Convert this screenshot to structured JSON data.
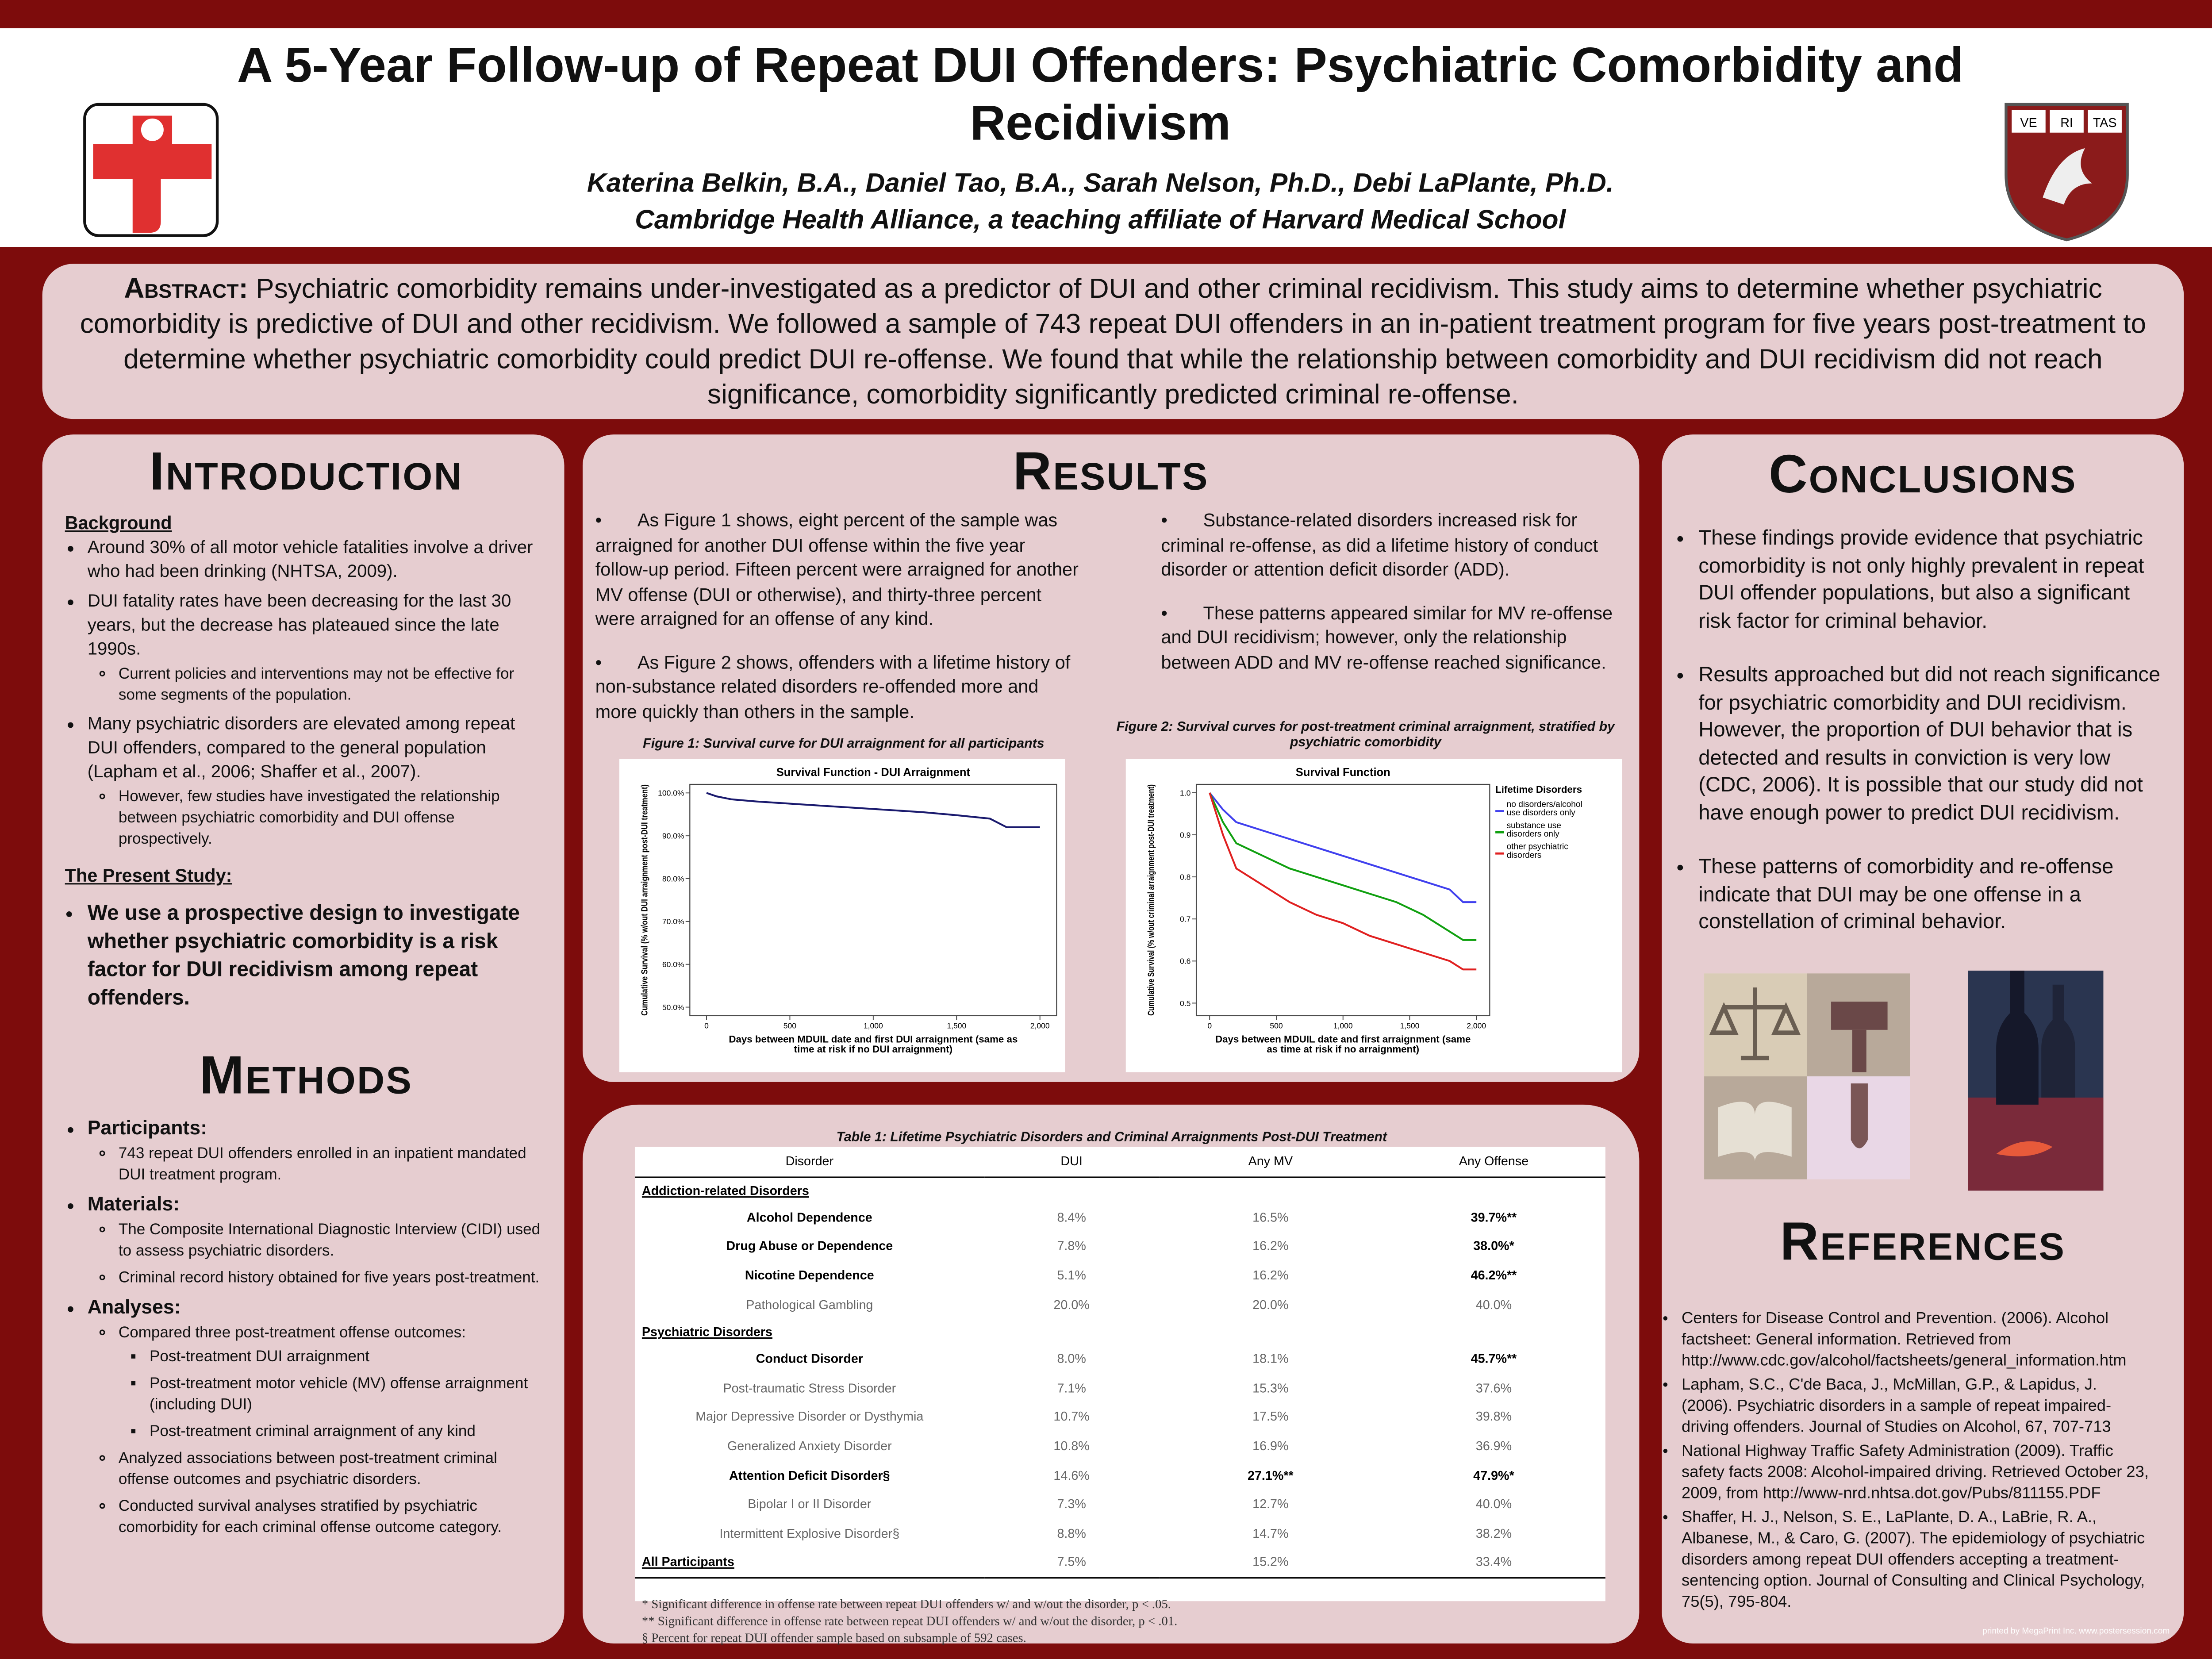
{
  "header": {
    "title": "A 5-Year Follow-up of Repeat DUI Offenders: Psychiatric Comorbidity and Recidivism",
    "authors": "Katerina Belkin, B.A., Daniel Tao, B.A., Sarah Nelson, Ph.D., Debi LaPlante, Ph.D.",
    "affiliation": "Cambridge Health Alliance, a teaching affiliate of Harvard Medical School",
    "shield_text": [
      "VE",
      "RI",
      "TAS"
    ]
  },
  "abstract": {
    "label": "Abstract:",
    "text": "Psychiatric comorbidity remains under-investigated as a predictor of DUI and other criminal recidivism. This study aims to determine whether psychiatric comorbidity is predictive of DUI and other recidivism. We followed a sample of 743 repeat DUI offenders in an in-patient treatment program for five years post-treatment to determine whether psychiatric comorbidity could predict DUI re-offense. We found that while the relationship between comorbidity and DUI recidivism did not reach significance, comorbidity significantly predicted criminal re-offense."
  },
  "introduction": {
    "heading": "Introduction",
    "background_heading": "Background",
    "bullets": [
      {
        "text": "Around 30% of all motor vehicle fatalities involve a driver who had been drinking (NHTSA, 2009).",
        "children": []
      },
      {
        "text": "DUI fatality rates have been decreasing for the last 30 years, but the decrease has plateaued since the late 1990s.",
        "children": [
          {
            "text": "Current policies and interventions may not be effective for some segments of the population.",
            "children": []
          }
        ]
      },
      {
        "text": "Many psychiatric disorders are elevated among repeat DUI offenders, compared to the general population (Lapham et al., 2006; Shaffer et al., 2007).",
        "children": [
          {
            "text": "However, few studies have investigated the relationship between psychiatric comorbidity and DUI offense prospectively.",
            "children": []
          }
        ]
      }
    ],
    "present_study_heading": "The Present Study:",
    "present_study_text": "We use a prospective design to investigate whether psychiatric comorbidity is a risk factor for DUI recidivism among repeat offenders."
  },
  "methods": {
    "heading": "Methods",
    "items": [
      {
        "text": "Participants:",
        "children": [
          {
            "text": "743 repeat DUI offenders enrolled in an inpatient mandated DUI treatment program.",
            "children": []
          }
        ]
      },
      {
        "text": "Materials:",
        "children": [
          {
            "text": "The Composite International Diagnostic Interview (CIDI) used to assess psychiatric disorders.",
            "children": []
          },
          {
            "text": "Criminal record history obtained for five years post-treatment.",
            "children": []
          }
        ]
      },
      {
        "text": "Analyses:",
        "children": [
          {
            "text": "Compared three post-treatment offense outcomes:",
            "children": [
              {
                "text": "Post-treatment DUI arraignment",
                "children": []
              },
              {
                "text": "Post-treatment motor vehicle (MV) offense arraignment (including DUI)",
                "children": []
              },
              {
                "text": "Post-treatment criminal arraignment of any kind",
                "children": []
              }
            ]
          },
          {
            "text": "Analyzed associations between post-treatment criminal offense outcomes and psychiatric disorders.",
            "children": []
          },
          {
            "text": "Conducted survival analyses stratified by psychiatric comorbidity for each criminal offense outcome category.",
            "children": []
          }
        ]
      }
    ]
  },
  "results": {
    "heading": "Results",
    "column_1": [
      "As Figure 1 shows, eight percent of the sample was arraigned for another DUI offense within the five year follow-up period. Fifteen percent were arraigned for another MV offense (DUI or otherwise), and thirty-three percent were arraigned for an offense of any kind.",
      "As Figure 2 shows, offenders with a lifetime history of non-substance related disorders re-offended more and more quickly than others in the sample."
    ],
    "column_2": [
      "Substance-related disorders increased risk for criminal re-offense, as did a lifetime history of conduct disorder or attention deficit disorder (ADD).",
      "These patterns appeared similar for MV re-offense and DUI recidivism; however, only the relationship between ADD and MV re-offense reached significance."
    ]
  },
  "chart_data": [
    {
      "type": "line",
      "caption": "Figure 1: Survival curve for DUI arraignment for all participants",
      "title": "Survival Function - DUI Arraignment",
      "y_label": "Cumulative Survival (% w/out DUI arraignment post-DUI treatment)",
      "x_label": "Days between MDUIL date and first DUI arraignment (same as time at risk if no DUI arraignment)",
      "xlim": [
        -100,
        2100
      ],
      "ylim": [
        48,
        102
      ],
      "xticks": [
        0,
        500,
        {
          "value": 1000,
          "label": "1,000"
        },
        {
          "value": 1500,
          "label": "1,500"
        },
        {
          "value": 2000,
          "label": "2,000"
        }
      ],
      "yticks": [
        {
          "value": 50,
          "label": "50.0%"
        },
        {
          "value": 60,
          "label": "60.0%"
        },
        {
          "value": 70,
          "label": "70.0%"
        },
        {
          "value": 80,
          "label": "80.0%"
        },
        {
          "value": 90,
          "label": "90.0%"
        },
        {
          "value": 100,
          "label": "100.0%"
        }
      ],
      "series": [
        {
          "color": "#1a1a6e",
          "x": [
            0,
            60,
            150,
            300,
            500,
            700,
            900,
            1100,
            1300,
            1500,
            1700,
            1800,
            2000
          ],
          "values": [
            100,
            99.2,
            98.5,
            98,
            97.5,
            97,
            96.5,
            96,
            95.5,
            94.8,
            94,
            92,
            92
          ]
        }
      ]
    },
    {
      "type": "line",
      "caption": "Figure 2: Survival curves for post-treatment criminal arraignment, stratified by psychiatric comorbidity",
      "title": "Survival Function",
      "legend_title": "Lifetime Disorders",
      "y_label": "Cumulative Survival (% w/out criminal arraignment post-DUI treatment)",
      "x_label": "Days between MDUIL date and first arraignment (same as time at risk if no arraignment)",
      "xlim": [
        -100,
        2100
      ],
      "ylim": [
        0.47,
        1.02
      ],
      "xticks": [
        0,
        500,
        {
          "value": 1000,
          "label": "1,000"
        },
        {
          "value": 1500,
          "label": "1,500"
        },
        {
          "value": 2000,
          "label": "2,000"
        }
      ],
      "yticks": [
        0.5,
        0.6,
        0.7,
        0.8,
        0.9,
        {
          "value": 1,
          "label": "1.0"
        }
      ],
      "series": [
        {
          "name": "no disorders/alcohol use disorders only",
          "color": "#4040ee",
          "x": [
            0,
            100,
            200,
            400,
            600,
            800,
            1000,
            1200,
            1400,
            1600,
            1800,
            1900,
            2000
          ],
          "values": [
            1.0,
            0.96,
            0.93,
            0.91,
            0.89,
            0.87,
            0.85,
            0.83,
            0.81,
            0.79,
            0.77,
            0.74,
            0.74
          ]
        },
        {
          "name": "substance use disorders only",
          "color": "#10a010",
          "x": [
            0,
            100,
            200,
            400,
            600,
            800,
            1000,
            1200,
            1400,
            1600,
            1800,
            1900,
            2000
          ],
          "values": [
            1.0,
            0.93,
            0.88,
            0.85,
            0.82,
            0.8,
            0.78,
            0.76,
            0.74,
            0.71,
            0.67,
            0.65,
            0.65
          ]
        },
        {
          "name": "other psychiatric disorders",
          "color": "#e02020",
          "x": [
            0,
            100,
            200,
            400,
            600,
            800,
            1000,
            1200,
            1400,
            1600,
            1800,
            1900,
            2000
          ],
          "values": [
            1.0,
            0.9,
            0.82,
            0.78,
            0.74,
            0.71,
            0.69,
            0.66,
            0.64,
            0.62,
            0.6,
            0.58,
            0.58
          ]
        }
      ]
    }
  ],
  "table": {
    "caption": "Table 1: Lifetime Psychiatric Disorders and Criminal Arraignments Post-DUI Treatment",
    "columns": [
      "Disorder",
      "DUI",
      "Any MV",
      "Any Offense"
    ],
    "sections": [
      {
        "title": "Addiction-related Disorders",
        "rows": [
          {
            "cells": [
              "Alcohol Dependence",
              "8.4%",
              "16.5%",
              "39.7%**"
            ],
            "emphasis": [
              true,
              false,
              false,
              true
            ]
          },
          {
            "cells": [
              "Drug Abuse or Dependence",
              "7.8%",
              "16.2%",
              "38.0%*"
            ],
            "emphasis": [
              true,
              false,
              false,
              true
            ]
          },
          {
            "cells": [
              "Nicotine Dependence",
              "5.1%",
              "16.2%",
              "46.2%**"
            ],
            "emphasis": [
              true,
              false,
              false,
              true
            ]
          },
          {
            "cells": [
              "Pathological Gambling",
              "20.0%",
              "20.0%",
              "40.0%"
            ],
            "emphasis": [
              false,
              false,
              false,
              false
            ]
          }
        ]
      },
      {
        "title": "Psychiatric Disorders",
        "rows": [
          {
            "cells": [
              "Conduct Disorder",
              "8.0%",
              "18.1%",
              "45.7%**"
            ],
            "emphasis": [
              true,
              false,
              false,
              true
            ]
          },
          {
            "cells": [
              "Post-traumatic Stress Disorder",
              "7.1%",
              "15.3%",
              "37.6%"
            ],
            "emphasis": [
              false,
              false,
              false,
              false
            ]
          },
          {
            "cells": [
              "Major Depressive Disorder or Dysthymia",
              "10.7%",
              "17.5%",
              "39.8%"
            ],
            "emphasis": [
              false,
              false,
              false,
              false
            ]
          },
          {
            "cells": [
              "Generalized Anxiety Disorder",
              "10.8%",
              "16.9%",
              "36.9%"
            ],
            "emphasis": [
              false,
              false,
              false,
              false
            ]
          },
          {
            "cells": [
              "Attention Deficit Disorder§",
              "14.6%",
              "27.1%**",
              "47.9%*"
            ],
            "emphasis": [
              true,
              false,
              true,
              true
            ]
          },
          {
            "cells": [
              "Bipolar I or II Disorder",
              "7.3%",
              "12.7%",
              "40.0%"
            ],
            "emphasis": [
              false,
              false,
              false,
              false
            ]
          },
          {
            "cells": [
              "Intermittent Explosive Disorder§",
              "8.8%",
              "14.7%",
              "38.2%"
            ],
            "emphasis": [
              false,
              false,
              false,
              false
            ]
          }
        ]
      }
    ],
    "total_row": [
      "All Participants",
      "7.5%",
      "15.2%",
      "33.4%"
    ],
    "footnotes": [
      "* Significant difference in offense rate between repeat DUI offenders w/ and w/out the disorder, p < .05.",
      "** Significant difference in offense rate between repeat DUI offenders w/ and w/out the disorder, p < .01.",
      "§ Percent for repeat DUI offender sample based on subsample of 592 cases."
    ]
  },
  "conclusions": {
    "heading": "Conclusions",
    "bullets": [
      "These findings provide evidence that psychiatric comorbidity is not only highly prevalent in repeat DUI offender populations, but also a significant risk factor for criminal behavior.",
      "Results approached but did not reach significance for psychiatric comorbidity and DUI recidivism. However, the proportion of DUI behavior that is detected and results in conviction is very low (CDC, 2006). It is possible that our study did not have enough power to predict DUI recidivism.",
      "These patterns of comorbidity and re-offense indicate that DUI may be one offense in a constellation of criminal behavior."
    ]
  },
  "references": {
    "heading": "References",
    "items": [
      "Centers for Disease Control and Prevention. (2006). Alcohol factsheet: General information. Retrieved from http://www.cdc.gov/alcohol/factsheets/general_information.htm",
      "Lapham, S.C., C'de Baca, J., McMillan, G.P., & Lapidus, J. (2006). Psychiatric disorders in a sample of repeat impaired-driving offenders. Journal of Studies on Alcohol, 67, 707-713",
      "National Highway Traffic Safety Administration (2009). Traffic safety facts 2008: Alcohol-impaired driving. Retrieved October 23, 2009, from http://www-nrd.nhtsa.dot.gov/Pubs/811155.PDF",
      "Shaffer, H. J., Nelson, S. E., LaPlante, D. A., LaBrie, R. A., Albanese, M., & Caro, G. (2007). The epidemiology of psychiatric disorders among repeat DUI offenders accepting a treatment-sentencing option. Journal of Consulting and Clinical Psychology, 75(5), 795-804."
    ]
  },
  "footer": "printed by MegaPrint Inc. www.postersession.com"
}
